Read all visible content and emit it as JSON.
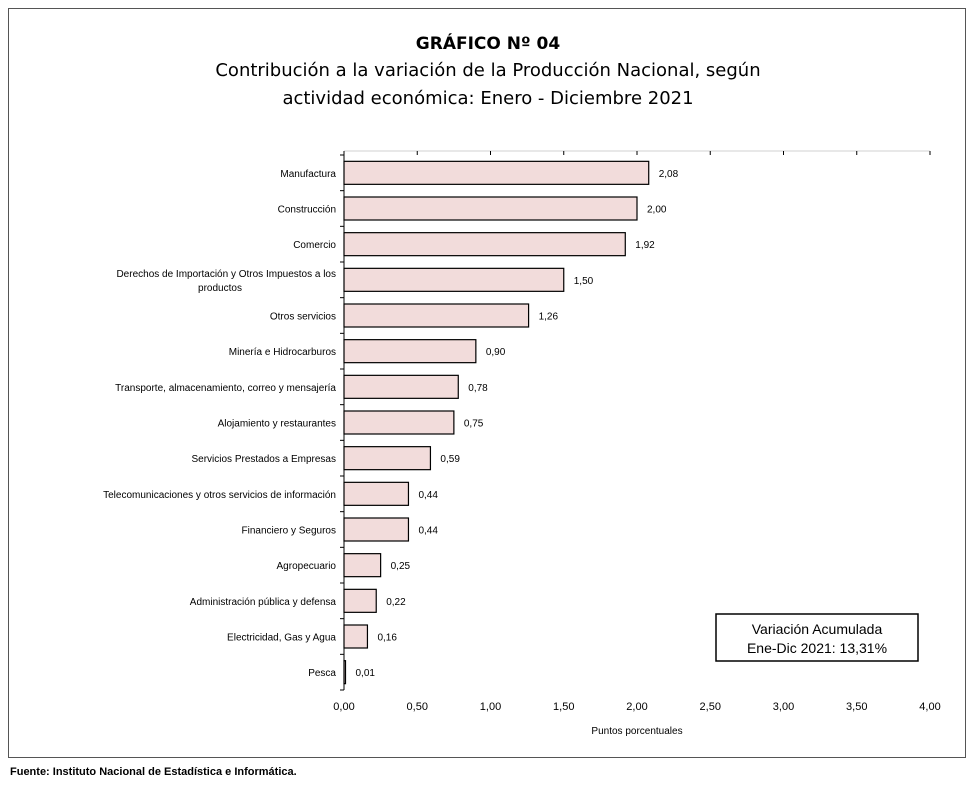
{
  "page": {
    "title": "GRÁFICO Nº 04",
    "subtitle_line1": "Contribución a la variación de la Producción Nacional, según",
    "subtitle_line2": "actividad económica: Enero - Diciembre 2021",
    "source": "Fuente:  Instituto Nacional de Estadística e Informática."
  },
  "chart_data": {
    "type": "bar",
    "orientation": "horizontal",
    "title": "GRÁFICO Nº 04",
    "subtitle": "Contribución a la variación de la Producción Nacional, según actividad económica: Enero - Diciembre 2021",
    "xlabel": "Puntos porcentuales",
    "ylabel": "",
    "xlim": [
      0,
      4
    ],
    "xticks": [
      "0,00",
      "0,50",
      "1,00",
      "1,50",
      "2,00",
      "2,50",
      "3,00",
      "3,50",
      "4,00"
    ],
    "grid": false,
    "categories": [
      [
        "Manufactura"
      ],
      [
        "Construcción"
      ],
      [
        "Comercio"
      ],
      [
        "Derechos de Importación y Otros Impuestos a los",
        "productos"
      ],
      [
        "Otros servicios"
      ],
      [
        "Minería e Hidrocarburos"
      ],
      [
        "Transporte, almacenamiento, correo y mensajería"
      ],
      [
        "Alojamiento y restaurantes"
      ],
      [
        "Servicios Prestados a Empresas"
      ],
      [
        "Telecomunicaciones y otros servicios de información"
      ],
      [
        "Financiero y Seguros"
      ],
      [
        "Agropecuario"
      ],
      [
        "Administración pública y defensa"
      ],
      [
        "Electricidad, Gas y Agua"
      ],
      [
        "Pesca"
      ]
    ],
    "values": [
      2.08,
      2.0,
      1.92,
      1.5,
      1.26,
      0.9,
      0.78,
      0.75,
      0.59,
      0.44,
      0.44,
      0.25,
      0.22,
      0.16,
      0.01
    ],
    "value_labels": [
      "2,08",
      "2,00",
      "1,92",
      "1,50",
      "1,26",
      "0,90",
      "0,78",
      "0,75",
      "0,59",
      "0,44",
      "0,44",
      "0,25",
      "0,22",
      "0,16",
      "0,01"
    ],
    "bar_color": "#f2dcdb",
    "bar_edge_color": "#000000",
    "annotation": {
      "line1": "Variación Acumulada",
      "line2": "Ene-Dic 2021: 13,31%",
      "position": "bottom-right"
    }
  }
}
